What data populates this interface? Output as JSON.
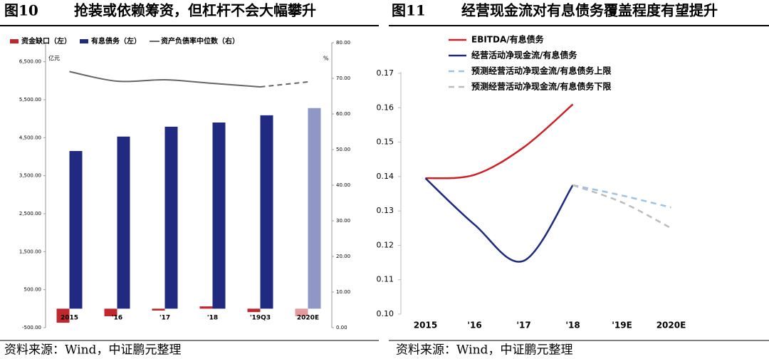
{
  "chart_data": [
    {
      "type": "combo",
      "label": "图10",
      "title": "抢装或依赖筹资，但杠杆不会大幅攀升",
      "source": "资料来源：Wind，中证鹏元整理",
      "y_unit": "亿元",
      "y2_unit": "%",
      "categories": [
        "2015",
        "'16",
        "'17",
        "'18",
        "'19Q3",
        "2020E"
      ],
      "ylim": [
        -500,
        7000
      ],
      "yticks": [
        {
          "value": -500,
          "label": "-500.00"
        },
        {
          "value": 500,
          "label": "500.00"
        },
        {
          "value": 1500,
          "label": "1,500.00"
        },
        {
          "value": 2500,
          "label": "2,500.00"
        },
        {
          "value": 3500,
          "label": "3,500.00"
        },
        {
          "value": 4500,
          "label": "4,500.00"
        },
        {
          "value": 5500,
          "label": "5,500.00"
        },
        {
          "value": 6500,
          "label": "6,500.00"
        }
      ],
      "y2lim": [
        0,
        80
      ],
      "y2ticks": [
        {
          "value": 0,
          "label": "0.00"
        },
        {
          "value": 10,
          "label": "10.00"
        },
        {
          "value": 20,
          "label": "20.00"
        },
        {
          "value": 30,
          "label": "30.00"
        },
        {
          "value": 40,
          "label": "40.00"
        },
        {
          "value": 50,
          "label": "50.00"
        },
        {
          "value": 60,
          "label": "60.00"
        },
        {
          "value": 70,
          "label": "70.00"
        },
        {
          "value": 80,
          "label": "80.00"
        }
      ],
      "series": [
        {
          "name": "资金缺口（左）",
          "kind": "bar",
          "color": "#c0282d",
          "colors": [
            "#c0282d",
            "#c0282d",
            "#c0282d",
            "#c0282d",
            "#c0282d",
            "#e79a9c"
          ],
          "values": [
            -370,
            -200,
            -50,
            60,
            -90,
            -200
          ]
        },
        {
          "name": "有息债务（左）",
          "kind": "bar",
          "color": "#1f2a80",
          "colors": [
            "#1f2a80",
            "#1f2a80",
            "#1f2a80",
            "#1f2a80",
            "#1f2a80",
            "#8f97c6"
          ],
          "values": [
            4150,
            4530,
            4790,
            4900,
            5090,
            5280
          ]
        },
        {
          "name": "资产负债率中位数（右）",
          "kind": "line",
          "axis": "y2",
          "color": "#666666",
          "dashed_from": "'19Q3",
          "values": [
            71.9,
            69.2,
            69.6,
            68.6,
            67.6,
            69.0
          ]
        }
      ]
    },
    {
      "type": "line",
      "label": "图11",
      "title": "经营现金流对有息债务覆盖程度有望提升",
      "source": "资料来源：Wind，中证鹏元整理",
      "categories": [
        "2015",
        "'16",
        "'17",
        "'18",
        "'19E",
        "2020E"
      ],
      "ylim": [
        0.1,
        0.17
      ],
      "yticks": [
        {
          "value": 0.1,
          "label": "0.10"
        },
        0.11,
        0.12,
        0.13,
        0.14,
        0.15,
        0.16,
        0.17
      ],
      "series": [
        {
          "name": "EBITDA/有息债务",
          "color": "#d02027",
          "dashed": false,
          "values": [
            0.1395,
            0.1405,
            0.1485,
            0.161,
            null,
            null
          ]
        },
        {
          "name": "经营活动净现金流/有息债务",
          "color": "#1f2a80",
          "dashed": false,
          "values": [
            0.1395,
            0.126,
            0.1155,
            0.1375,
            null,
            null
          ]
        },
        {
          "name": "预测经营活动净现金流/有息债务上限",
          "color": "#9cc3e6",
          "dashed": true,
          "values": [
            null,
            null,
            null,
            0.1375,
            0.1345,
            0.131
          ]
        },
        {
          "name": "预测经营活动净现金流/有息债务下限",
          "color": "#bdbdbd",
          "dashed": true,
          "values": [
            null,
            null,
            null,
            0.1375,
            0.1325,
            0.125
          ]
        }
      ]
    }
  ]
}
